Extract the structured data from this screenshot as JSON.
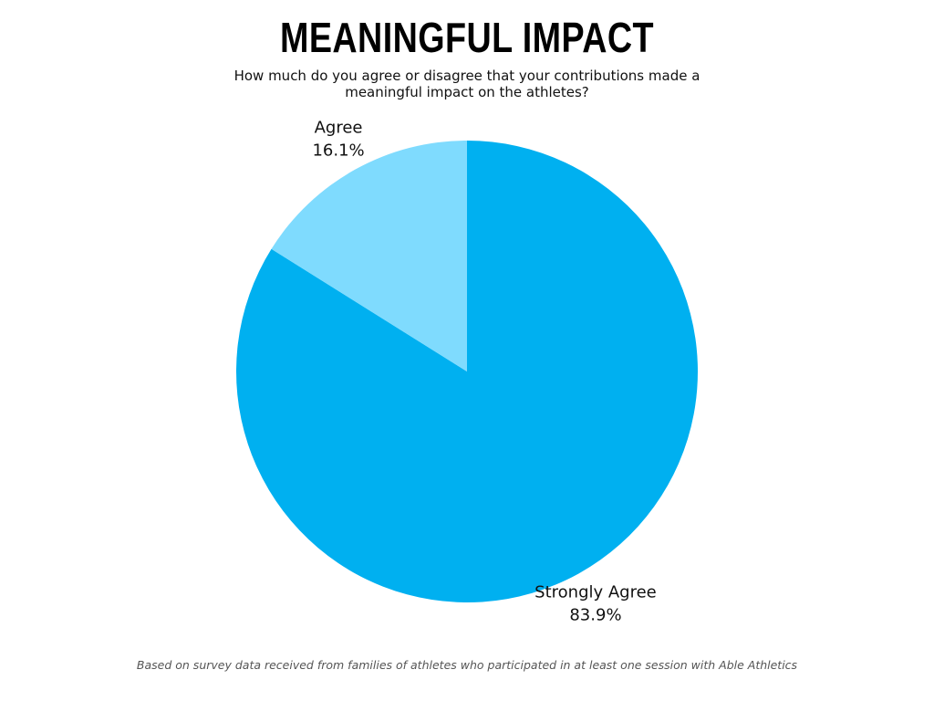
{
  "chart_data": {
    "type": "pie",
    "title": "MEANINGFUL IMPACT",
    "subtitle": "How much do you agree or disagree that your contributions made a meaningful impact on the athletes?",
    "footnote": "Based on survey data received from families of athletes who participated in at least one session with Able Athletics",
    "categories": [
      "Strongly Agree",
      "Agree"
    ],
    "values": [
      83.9,
      16.1
    ],
    "value_labels": [
      "83.9%",
      "16.1%"
    ],
    "colors": [
      "#00b0f0",
      "#7fdbfe"
    ]
  }
}
